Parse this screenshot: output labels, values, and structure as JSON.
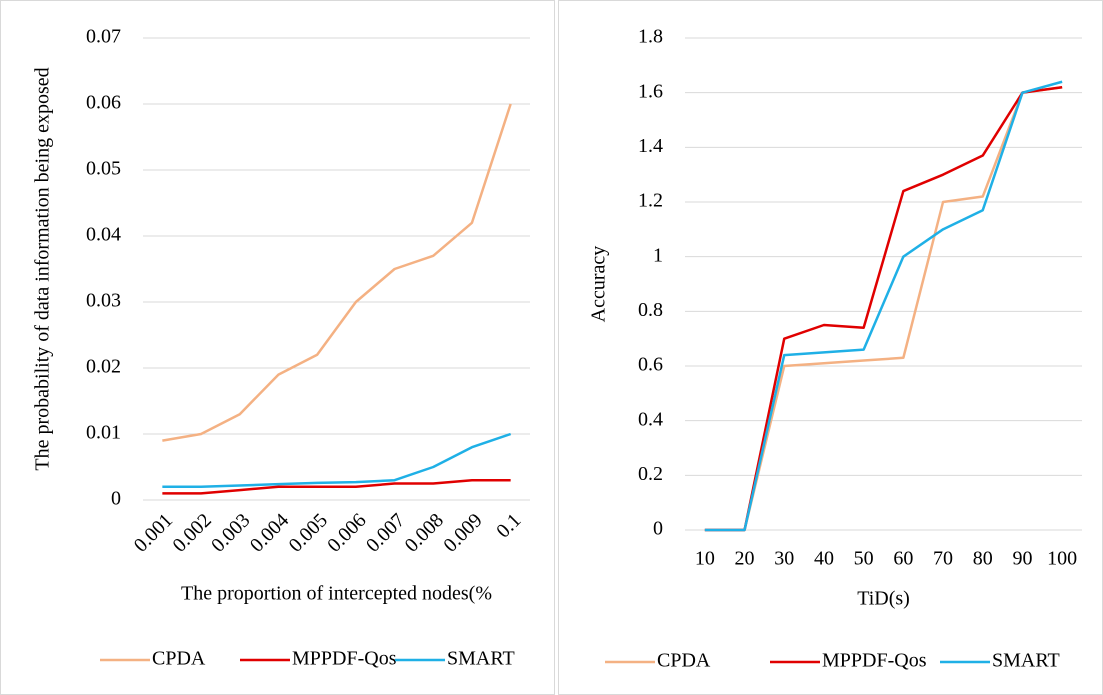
{
  "chart_data": [
    {
      "type": "line",
      "x_label": "The proportion of intercepted nodes(%",
      "y_label": "The probability of data information being exposed",
      "categories": [
        "0.001",
        "0.002",
        "0.003",
        "0.004",
        "0.005",
        "0.006",
        "0.007",
        "0.008",
        "0.009",
        "0.1"
      ],
      "series": [
        {
          "name": "CPDA",
          "color": "#f4b183",
          "values": [
            0.009,
            0.01,
            0.013,
            0.019,
            0.022,
            0.03,
            0.035,
            0.037,
            0.042,
            0.06
          ]
        },
        {
          "name": "MPPDF-Qos",
          "color": "#e00000",
          "values": [
            0.001,
            0.001,
            0.0015,
            0.002,
            0.002,
            0.002,
            0.0025,
            0.0025,
            0.003,
            0.003
          ]
        },
        {
          "name": "SMART",
          "color": "#1fb0e6",
          "values": [
            0.002,
            0.002,
            0.0022,
            0.0024,
            0.0026,
            0.0027,
            0.003,
            0.005,
            0.008,
            0.01
          ]
        }
      ],
      "ylim": [
        0,
        0.07
      ],
      "yticks": [
        0,
        0.01,
        0.02,
        0.03,
        0.04,
        0.05,
        0.06,
        0.07
      ],
      "grid": true,
      "legend": "bottom"
    },
    {
      "type": "line",
      "x_label": "TiD(s)",
      "y_label": "Accuracy",
      "categories": [
        "10",
        "20",
        "30",
        "40",
        "50",
        "60",
        "70",
        "80",
        "90",
        "100"
      ],
      "series": [
        {
          "name": "CPDA",
          "color": "#f4b183",
          "values": [
            0,
            0,
            0.6,
            0.61,
            0.62,
            0.63,
            1.2,
            1.22,
            1.6,
            1.62
          ]
        },
        {
          "name": "MPPDF-Qos",
          "color": "#e00000",
          "values": [
            0,
            0,
            0.7,
            0.75,
            0.74,
            1.24,
            1.3,
            1.37,
            1.6,
            1.62
          ]
        },
        {
          "name": "SMART",
          "color": "#1fb0e6",
          "values": [
            0,
            0,
            0.64,
            0.65,
            0.66,
            1.0,
            1.1,
            1.17,
            1.6,
            1.64
          ]
        }
      ],
      "ylim": [
        0,
        1.8
      ],
      "yticks": [
        0,
        0.2,
        0.4,
        0.6,
        0.8,
        1,
        1.2,
        1.4,
        1.6,
        1.8
      ],
      "grid": true,
      "legend": "bottom"
    }
  ]
}
